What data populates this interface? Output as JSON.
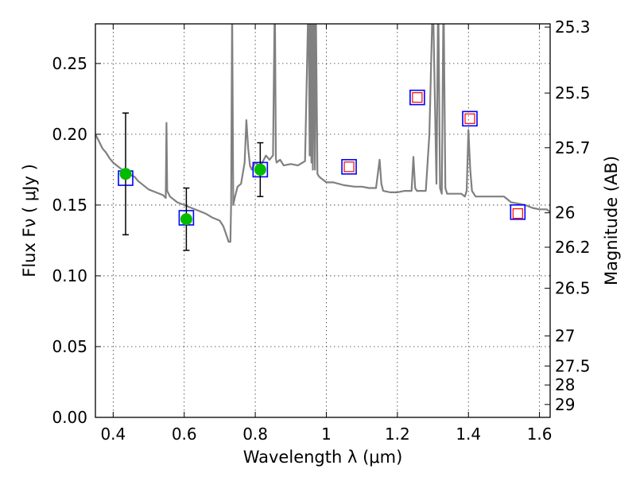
{
  "chart_data": {
    "type": "scatter",
    "xlabel": "Wavelength  λ (μm)",
    "ylabel": "Flux  Fν  ( μJy )",
    "y2label": "Magnitude (AB)",
    "xlim": [
      0.35,
      1.63
    ],
    "ylim": [
      0.0,
      0.278
    ],
    "grid": true,
    "x_ticks": [
      {
        "value": 0.4,
        "label": "0.4"
      },
      {
        "value": 0.6,
        "label": "0.6"
      },
      {
        "value": 0.8,
        "label": "0.8"
      },
      {
        "value": 1.0,
        "label": "1"
      },
      {
        "value": 1.2,
        "label": "1.2"
      },
      {
        "value": 1.4,
        "label": "1.4"
      },
      {
        "value": 1.6,
        "label": "1.6"
      }
    ],
    "y_ticks": [
      {
        "value": 0.0,
        "label": "0.00"
      },
      {
        "value": 0.05,
        "label": "0.05"
      },
      {
        "value": 0.1,
        "label": "0.10"
      },
      {
        "value": 0.15,
        "label": "0.15"
      },
      {
        "value": 0.2,
        "label": "0.20"
      },
      {
        "value": 0.25,
        "label": "0.25"
      }
    ],
    "y2_ticks": [
      {
        "flux": 0.2757,
        "label": "25.3"
      },
      {
        "flux": 0.2291,
        "label": "25.5"
      },
      {
        "flux": 0.1905,
        "label": "25.7"
      },
      {
        "flux": 0.1445,
        "label": "26"
      },
      {
        "flux": 0.1202,
        "label": "26.2"
      },
      {
        "flux": 0.0912,
        "label": "26.5"
      },
      {
        "flux": 0.0575,
        "label": "27"
      },
      {
        "flux": 0.0363,
        "label": "27.5"
      },
      {
        "flux": 0.0229,
        "label": "28"
      },
      {
        "flux": 0.0091,
        "label": "29"
      }
    ],
    "series": [
      {
        "kind": "model_spectrum",
        "color": "#808080",
        "x": [
          0.35,
          0.36,
          0.37,
          0.38,
          0.39,
          0.4,
          0.41,
          0.42,
          0.43,
          0.44,
          0.45,
          0.46,
          0.47,
          0.48,
          0.5,
          0.52,
          0.54,
          0.548,
          0.55,
          0.552,
          0.56,
          0.58,
          0.6,
          0.62,
          0.64,
          0.66,
          0.68,
          0.7,
          0.71,
          0.72,
          0.725,
          0.73,
          0.732,
          0.735,
          0.738,
          0.742,
          0.75,
          0.76,
          0.77,
          0.775,
          0.78,
          0.785,
          0.79,
          0.8,
          0.81,
          0.82,
          0.83,
          0.84,
          0.85,
          0.855,
          0.858,
          0.86,
          0.87,
          0.88,
          0.9,
          0.92,
          0.94,
          0.95,
          0.953,
          0.955,
          0.958,
          0.96,
          0.962,
          0.965,
          0.968,
          0.97,
          0.975,
          0.98,
          0.99,
          1.0,
          1.02,
          1.05,
          1.08,
          1.1,
          1.12,
          1.14,
          1.15,
          1.155,
          1.16,
          1.18,
          1.2,
          1.22,
          1.24,
          1.245,
          1.25,
          1.255,
          1.26,
          1.28,
          1.29,
          1.3,
          1.31,
          1.315,
          1.32,
          1.325,
          1.33,
          1.335,
          1.34,
          1.36,
          1.38,
          1.39,
          1.395,
          1.4,
          1.405,
          1.41,
          1.42,
          1.44,
          1.46,
          1.48,
          1.5,
          1.52,
          1.54,
          1.56,
          1.58,
          1.6,
          1.62,
          1.63
        ],
        "y": [
          0.2,
          0.195,
          0.19,
          0.187,
          0.183,
          0.18,
          0.178,
          0.176,
          0.174,
          0.173,
          0.171,
          0.17,
          0.167,
          0.165,
          0.161,
          0.159,
          0.157,
          0.155,
          0.208,
          0.16,
          0.156,
          0.152,
          0.15,
          0.148,
          0.146,
          0.144,
          0.141,
          0.139,
          0.135,
          0.128,
          0.124,
          0.124,
          0.15,
          0.29,
          0.15,
          0.155,
          0.163,
          0.165,
          0.18,
          0.21,
          0.19,
          0.178,
          0.175,
          0.18,
          0.178,
          0.18,
          0.185,
          0.182,
          0.185,
          0.3,
          0.183,
          0.18,
          0.182,
          0.178,
          0.179,
          0.178,
          0.181,
          0.3,
          0.185,
          0.3,
          0.18,
          0.3,
          0.175,
          0.3,
          0.175,
          0.3,
          0.172,
          0.17,
          0.168,
          0.166,
          0.166,
          0.164,
          0.163,
          0.163,
          0.162,
          0.162,
          0.182,
          0.165,
          0.16,
          0.159,
          0.159,
          0.16,
          0.16,
          0.184,
          0.162,
          0.16,
          0.16,
          0.16,
          0.2,
          0.3,
          0.165,
          0.3,
          0.162,
          0.158,
          0.3,
          0.162,
          0.158,
          0.158,
          0.158,
          0.156,
          0.16,
          0.203,
          0.175,
          0.16,
          0.156,
          0.156,
          0.156,
          0.156,
          0.156,
          0.152,
          0.151,
          0.15,
          0.148,
          0.147,
          0.147,
          0.145
        ],
        "width": 2.2
      },
      {
        "kind": "model_photometry",
        "marker": "square",
        "edgecolor": "#0000ff",
        "points": [
          {
            "x": 0.435,
            "y": 0.169
          },
          {
            "x": 0.606,
            "y": 0.141
          },
          {
            "x": 0.814,
            "y": 0.175
          },
          {
            "x": 1.064,
            "y": 0.177
          },
          {
            "x": 1.256,
            "y": 0.226
          },
          {
            "x": 1.404,
            "y": 0.211
          },
          {
            "x": 1.539,
            "y": 0.145
          }
        ]
      },
      {
        "kind": "upper_limits",
        "marker": "square",
        "edgecolor": "#ff0000",
        "points": [
          {
            "x": 1.064,
            "y": 0.177
          },
          {
            "x": 1.256,
            "y": 0.226
          },
          {
            "x": 1.404,
            "y": 0.211
          },
          {
            "x": 1.539,
            "y": 0.144
          }
        ]
      },
      {
        "kind": "observed",
        "marker": "circle",
        "color": "#00bb00",
        "points": [
          {
            "x": 0.435,
            "y": 0.172,
            "err_low": 0.043,
            "err_high": 0.043
          },
          {
            "x": 0.606,
            "y": 0.14,
            "err_low": 0.022,
            "err_high": 0.022
          },
          {
            "x": 0.814,
            "y": 0.175,
            "err_low": 0.019,
            "err_high": 0.019
          }
        ]
      }
    ]
  }
}
